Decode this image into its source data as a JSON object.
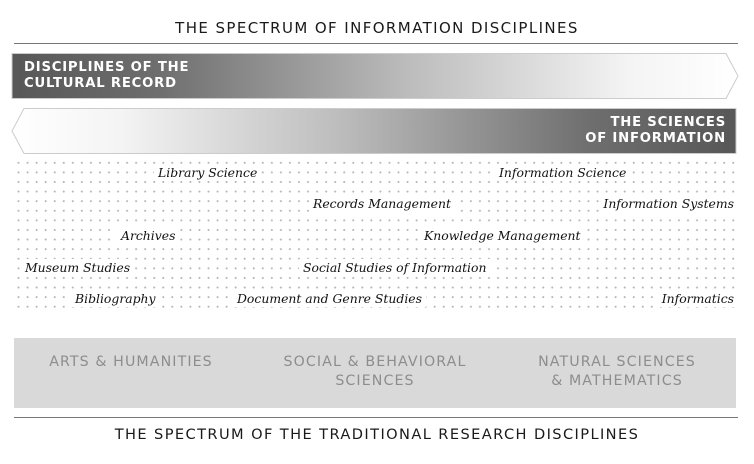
{
  "title": "THE SPECTRUM OF INFORMATION DISCIPLINES",
  "arrow_cultural": {
    "line1": "DISCIPLINES OF THE",
    "line2": "CULTURAL RECORD"
  },
  "arrow_sciences": {
    "line1": "THE SCIENCES",
    "line2": "OF INFORMATION"
  },
  "disciplines": [
    "Library Science",
    "Information Science",
    "Records Management",
    "Information Systems",
    "Archives",
    "Knowledge Management",
    "Museum Studies",
    "Social Studies of Information",
    "Bibliography",
    "Document and Genre Studies",
    "Informatics"
  ],
  "research_areas": {
    "arts": [
      "ARTS & HUMANITIES"
    ],
    "social": [
      "SOCIAL & BEHAVIORAL",
      "SCIENCES"
    ],
    "natural": [
      "NATURAL SCIENCES",
      "& MATHEMATICS"
    ]
  },
  "footer": "THE SPECTRUM OF THE TRADITIONAL RESEARCH DISCIPLINES",
  "colors": {
    "arrow_dark": "#555555",
    "band": "#d9d9d9",
    "band_text": "#8d8d8d",
    "dots": "#b5b5b5"
  }
}
